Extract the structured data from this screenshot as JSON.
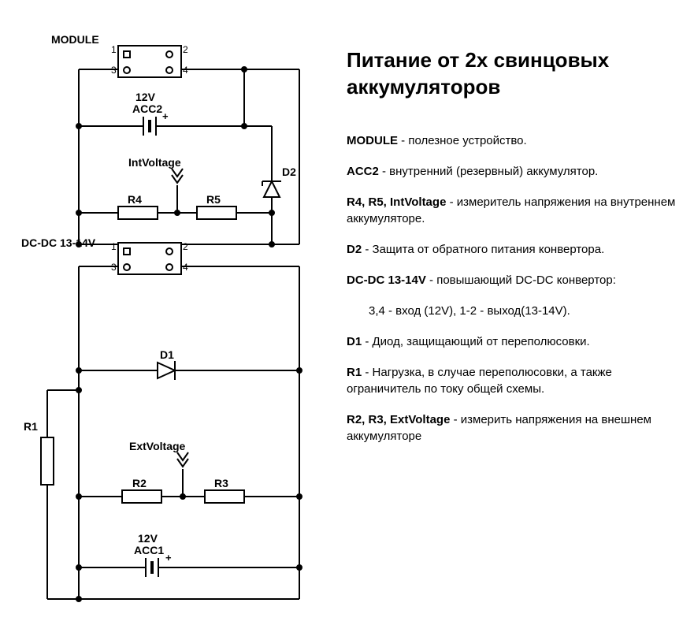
{
  "schematic": {
    "stroke": "#000000",
    "stroke_width": 2,
    "bg": "#ffffff",
    "module": {
      "label": "MODULE",
      "pins": [
        "1",
        "2",
        "3",
        "4"
      ]
    },
    "acc2": {
      "label1": "12V",
      "label2": "ACC2",
      "polarity": "+"
    },
    "acc1": {
      "label1": "12V",
      "label2": "ACC1",
      "polarity": "+"
    },
    "dcdc": {
      "label": "DC-DC 13-14V",
      "pins": [
        "1",
        "2",
        "3",
        "4"
      ]
    },
    "r1": {
      "label": "R1"
    },
    "r2": {
      "label": "R2"
    },
    "r3": {
      "label": "R3"
    },
    "r4": {
      "label": "R4"
    },
    "r5": {
      "label": "R5"
    },
    "d1": {
      "label": "D1"
    },
    "d2": {
      "label": "D2"
    },
    "intV": {
      "label": "IntVoltage"
    },
    "extV": {
      "label": "ExtVoltage"
    }
  },
  "legend": {
    "title": "Питание от 2х свинцовых аккумуляторов",
    "items": [
      {
        "b": "MODULE",
        "t": " - полезное устройство."
      },
      {
        "b": "ACC2",
        "t": " - внутренний (резервный) аккумулятор."
      },
      {
        "b": "R4, R5, IntVoltage",
        "t": " - измеритель напряжения на внутреннем аккумуляторе."
      },
      {
        "b": "D2",
        "t": " - Защита от обратного питания конвертора."
      },
      {
        "b": "DC-DC 13-14V",
        "t": " - повышающий DC-DC конвертор:"
      },
      {
        "indent": true,
        "b": "",
        "t": "3,4 - вход (12V), 1-2 - выход(13-14V)."
      },
      {
        "b": "D1",
        "t": " - Диод, защищающий от переполюсовки."
      },
      {
        "b": "R1",
        "t": " - Нагрузка, в случае переполюсовки, а также ограничитель по току общей схемы."
      },
      {
        "b": "R2, R3, ExtVoltage",
        "t": " - измерить напряжения на внешнем аккумуляторе"
      }
    ]
  }
}
